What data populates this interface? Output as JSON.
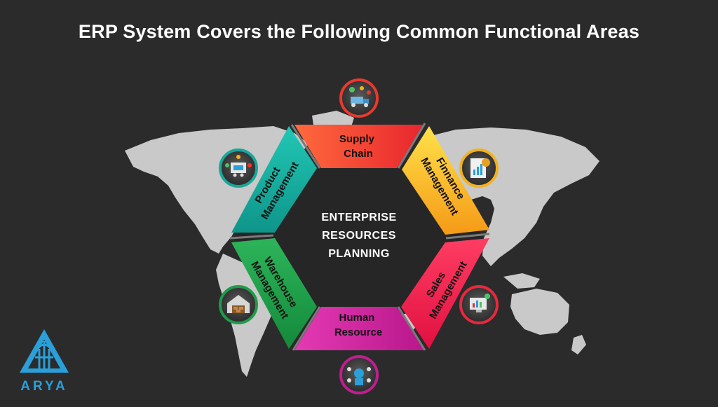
{
  "title": "ERP System Covers the Following Common Functional Areas",
  "center": {
    "line1": "ENTERPRISE",
    "line2": "RESOURCES",
    "line3": "PLANNING"
  },
  "segments": [
    {
      "id": "supply-chain",
      "lines": [
        "Supply",
        "Chain"
      ],
      "color_a": "#ff6a3d",
      "color_b": "#e8252e"
    },
    {
      "id": "finance-management",
      "lines": [
        "Finnance",
        "Management"
      ],
      "color_a": "#ffe14a",
      "color_b": "#f59a16"
    },
    {
      "id": "sales-management",
      "lines": [
        "Sales",
        "Management"
      ],
      "color_a": "#ff3d63",
      "color_b": "#e01040"
    },
    {
      "id": "human-resource",
      "lines": [
        "Human",
        "Resource"
      ],
      "color_a": "#e43ab3",
      "color_b": "#b9178c"
    },
    {
      "id": "warehouse-management",
      "lines": [
        "Warehouse",
        "Management"
      ],
      "color_a": "#2db45a",
      "color_b": "#138a3b"
    },
    {
      "id": "product-management",
      "lines": [
        "Product",
        "Management"
      ],
      "color_a": "#22c7b5",
      "color_b": "#0e958a"
    }
  ],
  "icons": [
    {
      "name": "supply-chain-icon",
      "ring": "#e8392e"
    },
    {
      "name": "finance-report-icon",
      "ring": "#f2b21d"
    },
    {
      "name": "sales-dashboard-icon",
      "ring": "#e8283f"
    },
    {
      "name": "team-people-icon",
      "ring": "#c01e8e"
    },
    {
      "name": "warehouse-icon",
      "ring": "#1f9a4a"
    },
    {
      "name": "product-cart-icon",
      "ring": "#17a89a"
    }
  ],
  "logo": {
    "text": "ARYA",
    "color": "#2a9fd8"
  },
  "colors": {
    "background": "#2b2b2b",
    "map": "#c9c9c9",
    "hex_center": "#2a2a2a"
  }
}
